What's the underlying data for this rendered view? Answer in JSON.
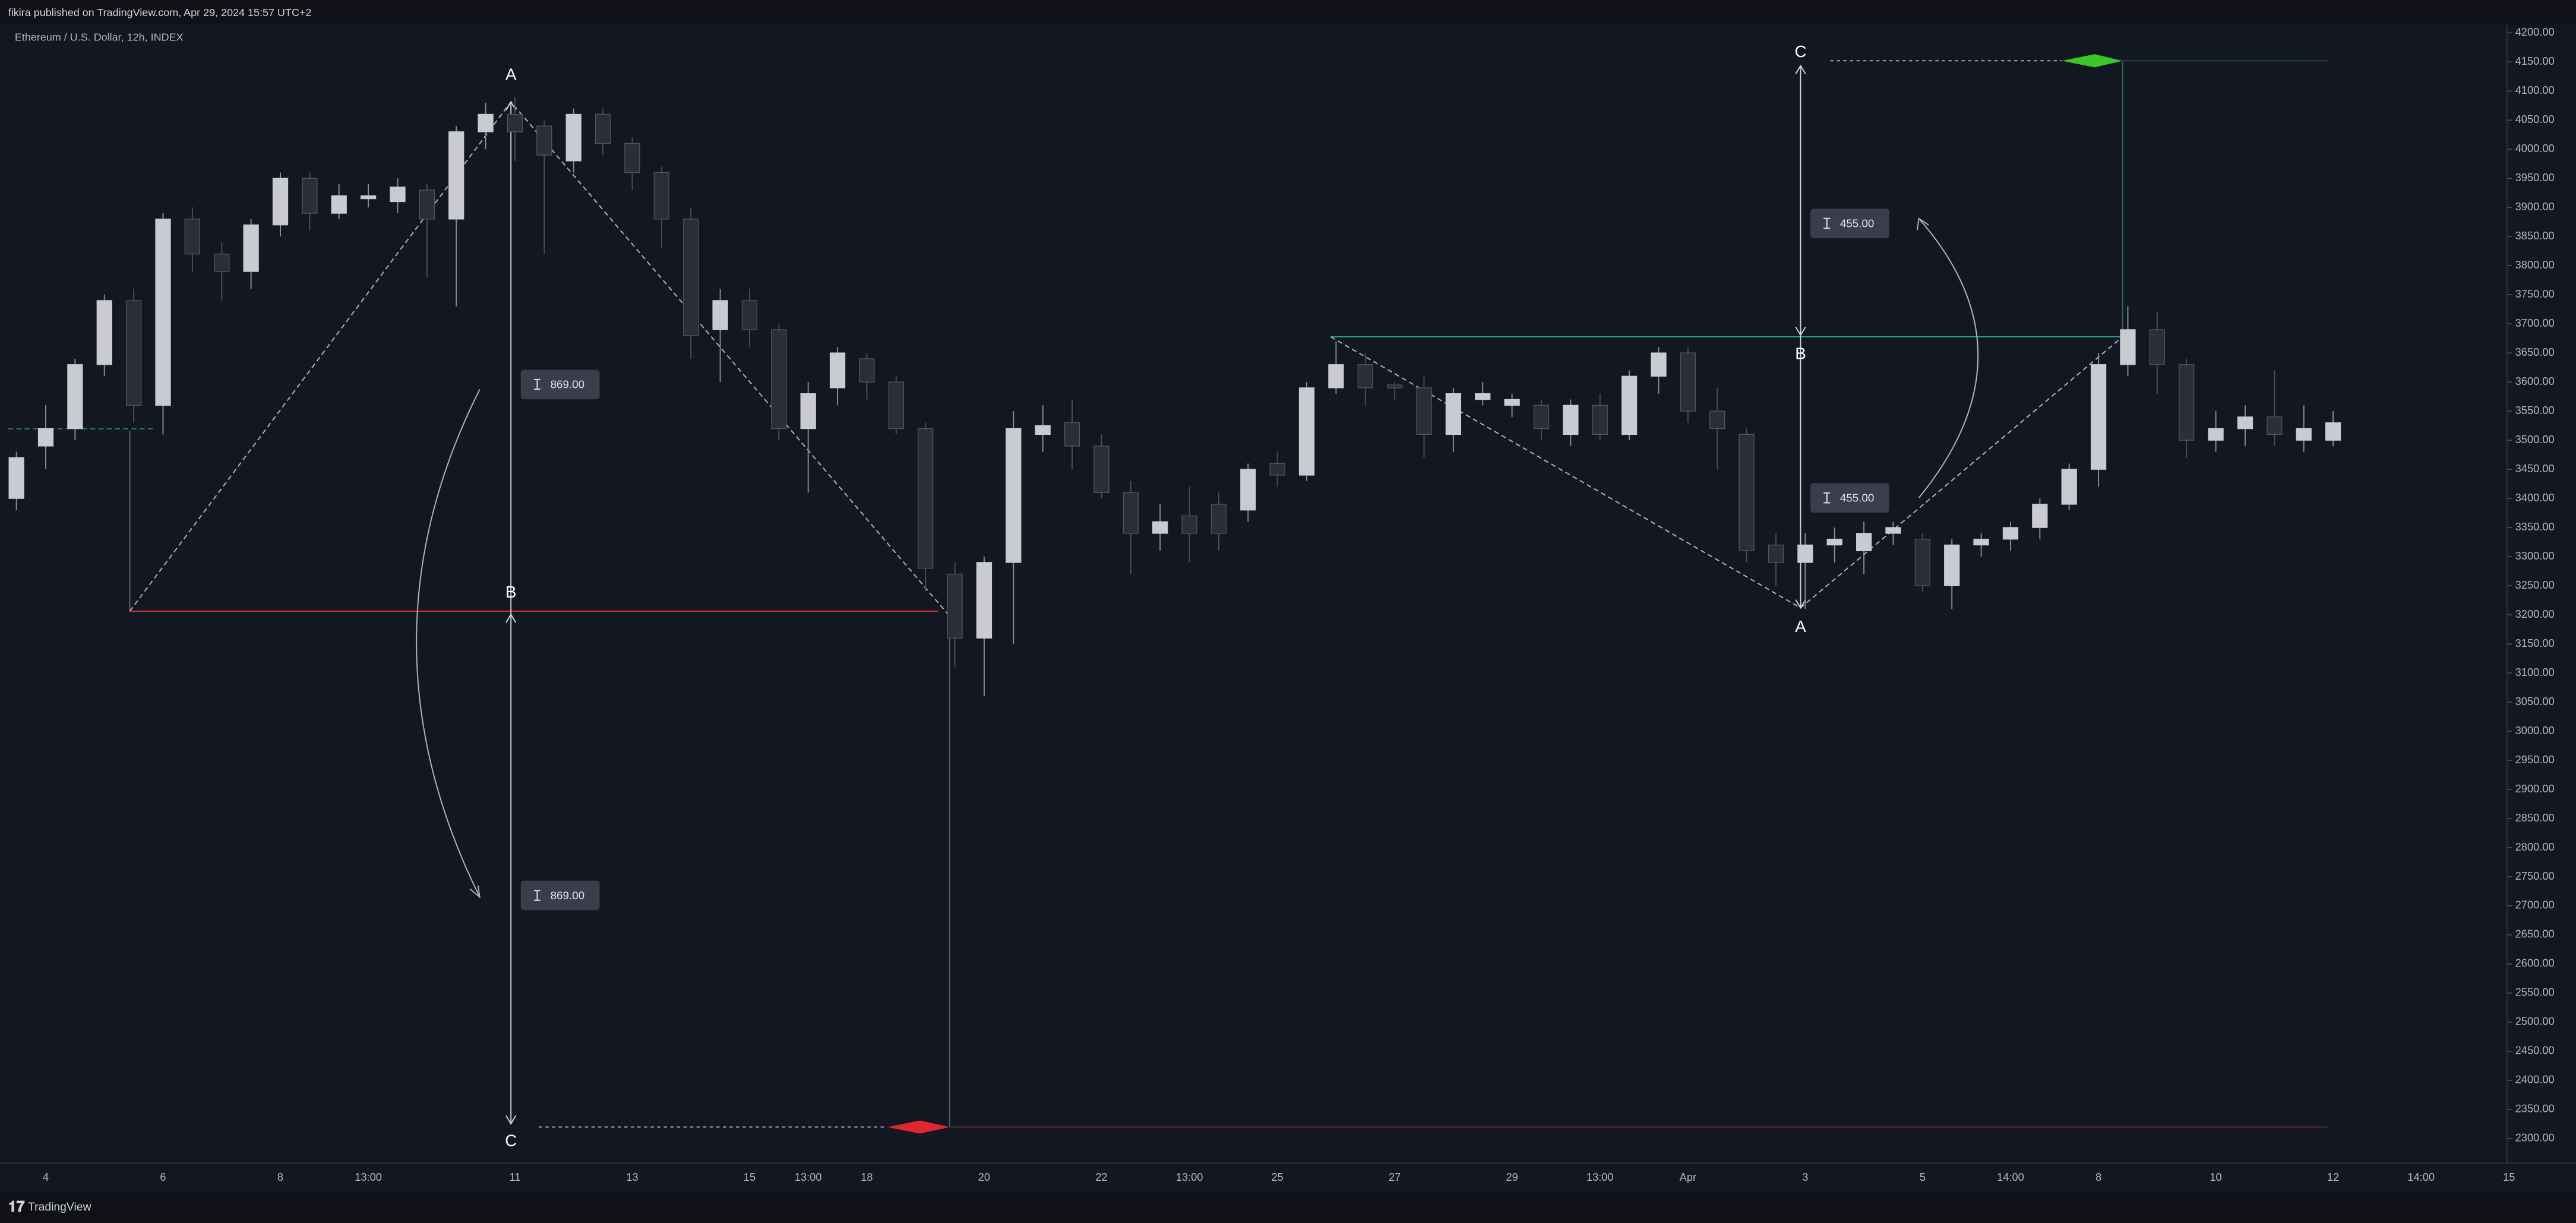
{
  "header": "fikira published on TradingView.com, Apr 29, 2024 15:57 UTC+2",
  "footer": "TradingView",
  "chart_data": {
    "type": "candlestick",
    "title": "Ethereum / U.S. Dollar, 12h, INDEX",
    "up_color": "#c9cbd1",
    "down_color": "#2a2e39",
    "grid": false,
    "categories": [
      null,
      "4",
      null,
      null,
      null,
      "6",
      null,
      null,
      null,
      "8",
      null,
      null,
      "13:00",
      null,
      null,
      null,
      null,
      "11",
      null,
      null,
      null,
      "13",
      null,
      null,
      null,
      "15",
      null,
      "13:00",
      null,
      "18",
      null,
      null,
      null,
      "20",
      null,
      null,
      null,
      "22",
      null,
      null,
      "13:00",
      null,
      null,
      "25",
      null,
      null,
      null,
      "27",
      null,
      null,
      null,
      "29",
      null,
      null,
      "13:00",
      null,
      null,
      "Apr",
      null,
      null,
      null,
      "3",
      null,
      null,
      null,
      "5",
      null,
      null,
      "14:00",
      null,
      null,
      "8",
      null,
      null,
      null,
      "10",
      null,
      null,
      null,
      "12",
      null,
      null,
      "14:00",
      null,
      null,
      "15"
    ],
    "open": [
      3400,
      3490,
      3520,
      3630,
      3740,
      3560,
      3880,
      3820,
      3790,
      3870,
      3950,
      3890,
      3915,
      3910,
      3930,
      3880,
      4030,
      4060,
      4040,
      3980,
      4060,
      4010,
      3960,
      3880,
      3690,
      3740,
      3690,
      3520,
      3590,
      3640,
      3600,
      3520,
      3270,
      3160,
      3290,
      3510,
      3530,
      3490,
      3410,
      3340,
      3370,
      3390,
      3380,
      3460,
      3440,
      3590,
      3630,
      3595,
      3590,
      3510,
      3570,
      3560,
      3560,
      3510,
      3560,
      3510,
      3610,
      3650,
      3550,
      3510,
      3320,
      3290,
      3320,
      3310,
      3340,
      3330,
      3250,
      3320,
      3330,
      3350,
      3390,
      3450,
      3630,
      3690,
      3630,
      3500,
      3520,
      3540,
      3500,
      3500,
      null,
      null,
      null,
      null,
      null,
      null
    ],
    "high": [
      3480,
      3560,
      3640,
      3750,
      3760,
      3890,
      3900,
      3840,
      3880,
      3960,
      3960,
      3940,
      3940,
      3950,
      3940,
      4040,
      4080,
      4090,
      4050,
      4070,
      4070,
      4020,
      3970,
      3900,
      3760,
      3760,
      3700,
      3600,
      3660,
      3650,
      3610,
      3530,
      3290,
      3300,
      3550,
      3560,
      3570,
      3510,
      3430,
      3390,
      3420,
      3410,
      3460,
      3480,
      3600,
      3670,
      3650,
      3600,
      3610,
      3590,
      3600,
      3580,
      3570,
      3570,
      3580,
      3620,
      3660,
      3660,
      3590,
      3520,
      3340,
      3340,
      3350,
      3360,
      3360,
      3340,
      3330,
      3340,
      3360,
      3400,
      3460,
      3650,
      3730,
      3720,
      3640,
      3550,
      3560,
      3620,
      3560,
      3550,
      null,
      null,
      null,
      null,
      null,
      null
    ],
    "low": [
      3380,
      3450,
      3500,
      3610,
      3530,
      3510,
      3790,
      3740,
      3760,
      3850,
      3860,
      3880,
      3900,
      3890,
      3780,
      3730,
      4000,
      3980,
      3820,
      3960,
      3990,
      3930,
      3830,
      3640,
      3600,
      3660,
      3500,
      3410,
      3560,
      3570,
      3510,
      3240,
      3110,
      3060,
      3150,
      3480,
      3450,
      3400,
      3270,
      3310,
      3290,
      3310,
      3360,
      3420,
      3430,
      3580,
      3560,
      3570,
      3470,
      3480,
      3560,
      3540,
      3500,
      3490,
      3500,
      3500,
      3580,
      3530,
      3450,
      3290,
      3250,
      3210,
      3290,
      3270,
      3320,
      3240,
      3210,
      3300,
      3310,
      3330,
      3380,
      3420,
      3610,
      3580,
      3470,
      3480,
      3490,
      3490,
      3480,
      3490,
      null,
      null,
      null,
      null,
      null,
      null
    ],
    "close": [
      3470,
      3520,
      3630,
      3740,
      3560,
      3880,
      3820,
      3790,
      3870,
      3950,
      3890,
      3920,
      3920,
      3935,
      3880,
      4030,
      4060,
      4030,
      3990,
      4060,
      4010,
      3960,
      3880,
      3680,
      3740,
      3690,
      3520,
      3580,
      3650,
      3600,
      3520,
      3280,
      3160,
      3290,
      3520,
      3525,
      3490,
      3410,
      3340,
      3360,
      3340,
      3340,
      3450,
      3440,
      3590,
      3630,
      3590,
      3590,
      3510,
      3580,
      3580,
      3570,
      3520,
      3560,
      3510,
      3610,
      3650,
      3550,
      3520,
      3310,
      3290,
      3320,
      3330,
      3340,
      3350,
      3250,
      3320,
      3330,
      3350,
      3390,
      3450,
      3630,
      3690,
      3630,
      3500,
      3520,
      3540,
      3510,
      3520,
      3530,
      null,
      null,
      null,
      null,
      null,
      null
    ],
    "ylim": [
      2300,
      4200
    ],
    "yticks": [
      {
        "value": 2300,
        "label": "2300.00"
      },
      {
        "value": 2350,
        "label": "2350.00"
      },
      {
        "value": 2400,
        "label": "2400.00"
      },
      {
        "value": 2450,
        "label": "2450.00"
      },
      {
        "value": 2500,
        "label": "2500.00"
      },
      {
        "value": 2550,
        "label": "2550.00"
      },
      {
        "value": 2600,
        "label": "2600.00"
      },
      {
        "value": 2650,
        "label": "2650.00"
      },
      {
        "value": 2700,
        "label": "2700.00"
      },
      {
        "value": 2750,
        "label": "2750.00"
      },
      {
        "value": 2800,
        "label": "2800.00"
      },
      {
        "value": 2850,
        "label": "2850.00"
      },
      {
        "value": 2900,
        "label": "2900.00"
      },
      {
        "value": 2950,
        "label": "2950.00"
      },
      {
        "value": 3000,
        "label": "3000.00"
      },
      {
        "value": 3050,
        "label": "3050.00"
      },
      {
        "value": 3100,
        "label": "3100.00"
      },
      {
        "value": 3150,
        "label": "3150.00"
      },
      {
        "value": 3200,
        "label": "3200.00"
      },
      {
        "value": 3250,
        "label": "3250.00"
      },
      {
        "value": 3300,
        "label": "3300.00"
      },
      {
        "value": 3350,
        "label": "3350.00"
      },
      {
        "value": 3400,
        "label": "3400.00"
      },
      {
        "value": 3450,
        "label": "3450.00"
      },
      {
        "value": 3500,
        "label": "3500.00"
      },
      {
        "value": 3550,
        "label": "3550.00"
      },
      {
        "value": 3600,
        "label": "3600.00"
      },
      {
        "value": 3650,
        "label": "3650.00"
      },
      {
        "value": 3700,
        "label": "3700.00"
      },
      {
        "value": 3750,
        "label": "3750.00"
      },
      {
        "value": 3800,
        "label": "3800.00"
      },
      {
        "value": 3850,
        "label": "3850.00"
      },
      {
        "value": 3900,
        "label": "3900.00"
      },
      {
        "value": 3950,
        "label": "3950.00"
      },
      {
        "value": 4000,
        "label": "4000.00"
      },
      {
        "value": 4050,
        "label": "4050.00"
      },
      {
        "value": 4100,
        "label": "4100.00"
      },
      {
        "value": 4150,
        "label": "4150.00"
      },
      {
        "value": 4200,
        "label": "4200.00"
      }
    ],
    "annotations": [
      "A",
      "B",
      "C",
      "869.00",
      "869.00",
      "A",
      "B",
      "C",
      "455.00",
      "455.00"
    ]
  }
}
